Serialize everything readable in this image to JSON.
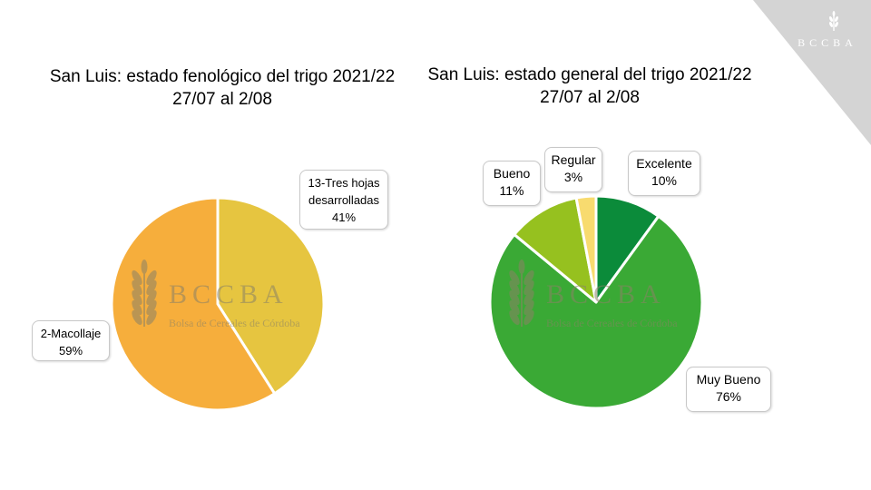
{
  "brand": {
    "corner_logo_text": "BCCBA",
    "watermark_title": "BCCBA",
    "watermark_subtitle": "Bolsa de Cereales de Córdoba"
  },
  "colors": {
    "corner": "#d4d4d4",
    "macollaje": "#f6ae3c",
    "tres_hojas": "#e6c540",
    "excelente": "#0b8b3a",
    "muy_bueno": "#3aa935",
    "bueno": "#96c11f",
    "regular": "#f8db6f"
  },
  "chart_data": [
    {
      "type": "pie",
      "title": "San Luis: estado fenológico del trigo 2021/22",
      "subtitle": "27/07 al 2/08",
      "slices": [
        {
          "label": "13-Tres hojas desarrolladas",
          "label_lines": [
            "13-Tres hojas",
            "desarrolladas"
          ],
          "value": 41,
          "value_label": "41%",
          "color": "#e6c540"
        },
        {
          "label": "2-Macollaje",
          "label_lines": [
            "2-Macollaje"
          ],
          "value": 59,
          "value_label": "59%",
          "color": "#f6ae3c"
        }
      ]
    },
    {
      "type": "pie",
      "title": "San Luis: estado general del trigo 2021/22",
      "subtitle": "27/07 al 2/08",
      "slices": [
        {
          "label": "Excelente",
          "label_lines": [
            "Excelente"
          ],
          "value": 10,
          "value_label": "10%",
          "color": "#0b8b3a"
        },
        {
          "label": "Muy Bueno",
          "label_lines": [
            "Muy Bueno"
          ],
          "value": 76,
          "value_label": "76%",
          "color": "#3aa935"
        },
        {
          "label": "Bueno",
          "label_lines": [
            "Bueno"
          ],
          "value": 11,
          "value_label": "11%",
          "color": "#96c11f"
        },
        {
          "label": "Regular",
          "label_lines": [
            "Regular"
          ],
          "value": 3,
          "value_label": "3%",
          "color": "#f8db6f"
        }
      ]
    }
  ]
}
